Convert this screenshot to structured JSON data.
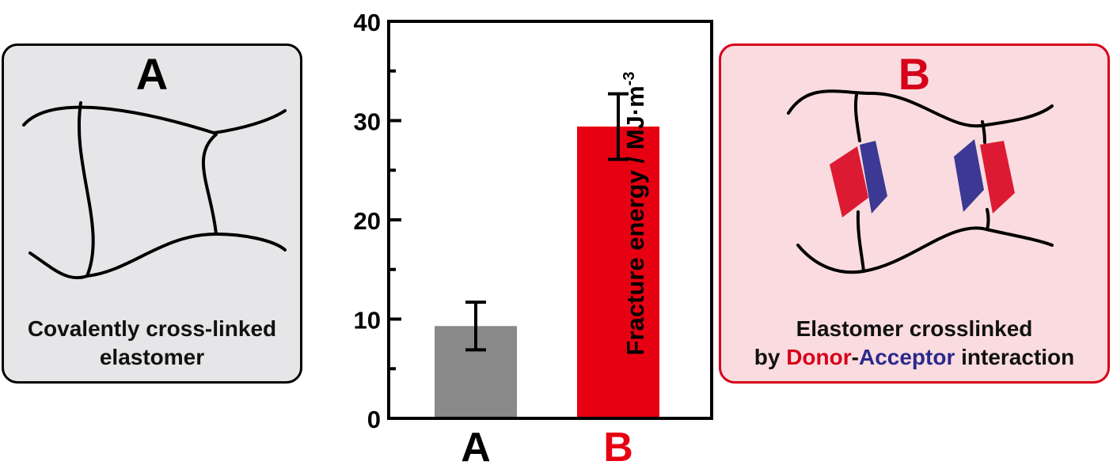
{
  "panel_a": {
    "title": "A",
    "caption_line1": "Covalently cross-linked",
    "caption_line2": "elastomer"
  },
  "panel_b": {
    "title": "B",
    "caption_line1": "Elastomer crosslinked",
    "caption_by": "by ",
    "caption_donor": "Donor",
    "caption_dash": "-",
    "caption_acceptor": "Acceptor",
    "caption_tail": " interaction"
  },
  "colors": {
    "bar_a": "#898989",
    "bar_b": "#e60012",
    "donor": "#d7001a",
    "acceptor": "#2a2a8c"
  },
  "chart_data": {
    "type": "bar",
    "categories": [
      "A",
      "B"
    ],
    "values": [
      9.3,
      29.4
    ],
    "errors": [
      2.4,
      3.3
    ],
    "bar_colors": [
      "#898989",
      "#e60012"
    ],
    "category_colors": [
      "#000000",
      "#e60012"
    ],
    "ylabel": "Fracture energy / MJ·m",
    "ylabel_sup": "-3",
    "ylim": [
      0,
      40
    ],
    "yticks": [
      0,
      10,
      20,
      30,
      40
    ],
    "ytick_labels": [
      "0",
      "10",
      "20",
      "30",
      "40"
    ],
    "minor_step": 5,
    "grid": false
  }
}
